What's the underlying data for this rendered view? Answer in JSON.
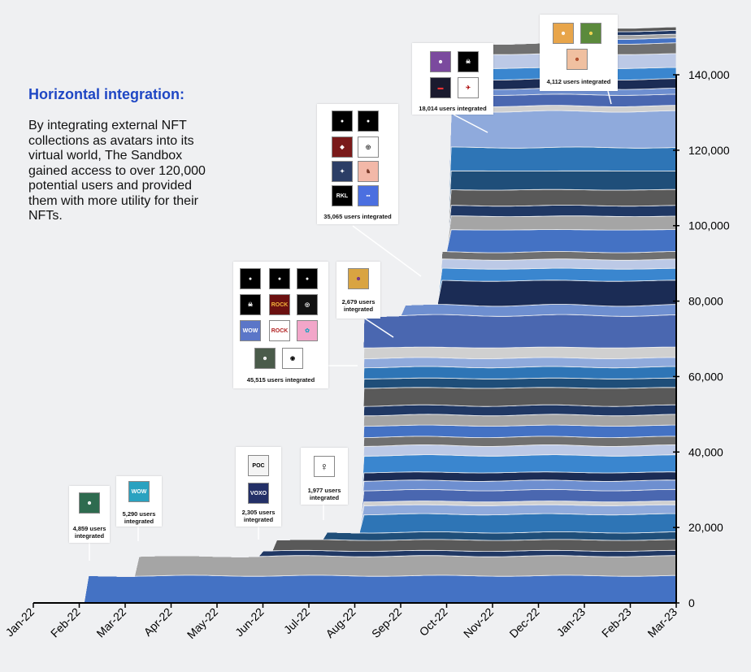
{
  "page": {
    "heading": "Horizontal integration:",
    "body": "By integrating external NFT collections as avatars into its virtual world, The Sandbox gained access to over 120,000 potential users and provided them with more utility for their NFTs."
  },
  "colors": {
    "background": "#eff0f2",
    "heading": "#1f47c4",
    "palette": [
      "#4472c4",
      "#a5a5a5",
      "#203864",
      "#595959",
      "#1f4e79",
      "#2e75b6",
      "#8faadc",
      "#d0d0d0",
      "#4a67b0",
      "#6e8fd0",
      "#1b2c55",
      "#3a86cf",
      "#bcc9e6",
      "#707070"
    ]
  },
  "annotations": [
    {
      "label": "4,859 users integrated"
    },
    {
      "label": "5,290 users integrated"
    },
    {
      "label": "2,305 users integrated"
    },
    {
      "label": "1,977 users integrated"
    },
    {
      "label": "45,515 users integrated"
    },
    {
      "label": "2,679 users integrated"
    },
    {
      "label": "35,065 users integrated"
    },
    {
      "label": "18,014 users integrated"
    },
    {
      "label": "4,112 users integrated"
    }
  ],
  "chart_data": {
    "type": "area",
    "stacked": true,
    "x_ticks": [
      "Jan-22",
      "Feb-22",
      "Mar-22",
      "Apr-22",
      "May-22",
      "Jun-22",
      "Jul-22",
      "Aug-22",
      "Sep-22",
      "Oct-22",
      "Nov-22",
      "Dec-22",
      "Jan-23",
      "Feb-23",
      "Mar-23"
    ],
    "ylim": [
      0,
      140000
    ],
    "y_ticks": [
      "0",
      "20,000",
      "40,000",
      "60,000",
      "80,000",
      "100,000",
      "120,000",
      "140,000"
    ],
    "y_axis_position": "right",
    "legend": "none",
    "series_groups": [
      {
        "start": "Feb-22",
        "start_month": 1.2,
        "values": [
          7200
        ]
      },
      {
        "start": "Mar-22",
        "start_month": 2.25,
        "values": [
          5200
        ]
      },
      {
        "start": "Jun-22",
        "start_month": 4.95,
        "values": [
          1400
        ]
      },
      {
        "start": "Jun-22",
        "start_month": 5.3,
        "values": [
          2900
        ]
      },
      {
        "start": "Jul-22",
        "start_month": 6.4,
        "values": [
          2000
        ]
      },
      {
        "start": "Aug-22",
        "start_month": 7.2,
        "values": [
          4800,
          2400,
          1000,
          3000,
          2500,
          2200,
          4500,
          2600,
          2300,
          3000,
          2800,
          2500,
          4700,
          2500,
          3000,
          2400,
          2800,
          8500
        ]
      },
      {
        "start": "Sep-22",
        "start_month": 8.05,
        "values": [
          2700
        ]
      },
      {
        "start": "Oct-22",
        "start_month": 8.9,
        "values": [
          6500,
          3200,
          2400,
          2000
        ]
      },
      {
        "start": "Oct-22",
        "start_month": 9.1,
        "values": [
          5900,
          3600,
          2800,
          4200,
          5000,
          6200,
          9600
        ]
      },
      {
        "start": "Nov-22",
        "start_month": 9.9,
        "values": [
          1400,
          3000,
          1600,
          2500,
          3000,
          3700,
          2800
        ]
      },
      {
        "start": "Jan-23",
        "start_month": 12.55,
        "values": [
          1300,
          1000,
          1000,
          900
        ]
      }
    ]
  }
}
